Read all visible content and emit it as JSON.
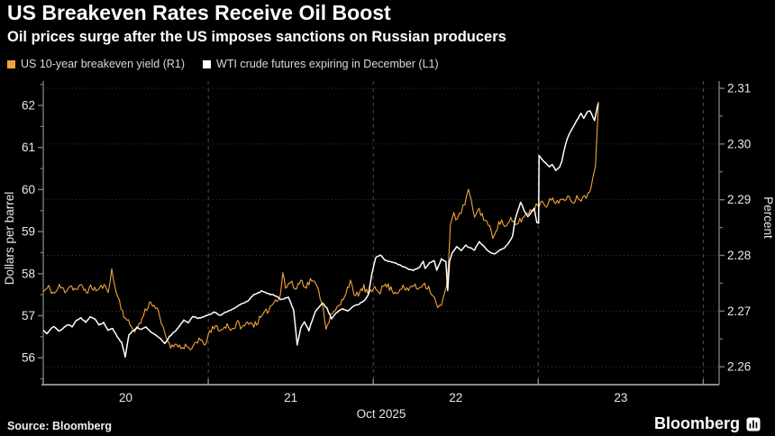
{
  "header": {
    "title": "US Breakeven Rates Receive Oil Boost",
    "subtitle": "Oil prices surge after the US imposes sanctions on Russian producers"
  },
  "legend": {
    "items": [
      {
        "label": "US 10-year breakeven yield (R1)",
        "color": "#F2A33C"
      },
      {
        "label": "WTI crude futures expiring in December (L1)",
        "color": "#FFFFFF"
      }
    ]
  },
  "footer": {
    "source": "Source: Bloomberg",
    "brand": "Bloomberg",
    "brand_icon": "bloomberg-chart-app-icon"
  },
  "colors": {
    "background": "#000000",
    "orange_series": "#F2A33C",
    "white_series": "#FFFFFF",
    "grid_horizontal": "#3a3a3a",
    "grid_vertical": "#4d4d4d",
    "axis_line": "#7a7a7a",
    "bottom_axis_line": "#8a8a8a",
    "tick_label": "#e8e8e8",
    "axis_title": "#d9d9d9"
  },
  "chart_data": {
    "type": "line",
    "title": "US Breakeven Rates Receive Oil Boost",
    "subtitle": "Oil prices surge after the US imposes sanctions on Russian producers",
    "x_axis": {
      "label": "Oct 2025",
      "note_time_unit": "days since Oct 20 2025 00:00",
      "range_days": [
        0,
        4.096
      ],
      "day_label_positions": [
        0.5,
        1.5,
        2.5,
        3.5
      ],
      "day_labels": [
        "20",
        "21",
        "22",
        "23"
      ],
      "boundary_ticks_days": [
        0,
        1,
        2,
        3,
        4
      ],
      "vertical_gridlines_days": [
        1,
        2,
        3,
        4
      ]
    },
    "left_axis": {
      "label": "Dollars per barrel",
      "range": [
        55.36,
        62.58
      ],
      "tick_values": [
        56,
        57,
        58,
        59,
        60,
        61,
        62
      ],
      "tick_labels": [
        "56",
        "57",
        "58",
        "59",
        "60",
        "61",
        "62"
      ],
      "minor_step": 0.5
    },
    "right_axis": {
      "label": "Percent",
      "range": [
        2.2568,
        2.3113
      ],
      "tick_values": [
        2.26,
        2.27,
        2.28,
        2.29,
        2.3,
        2.31
      ],
      "tick_labels": [
        "2.26",
        "2.27",
        "2.28",
        "2.29",
        "2.30",
        "2.31"
      ],
      "minor_step": 0.005,
      "gridlines_on_ticks": true
    },
    "series": [
      {
        "name": "US 10-year breakeven yield (R1)",
        "axis": "right",
        "color": "#F2A33C",
        "width": 1.1,
        "jitter": 0.0006,
        "points": [
          [
            0.0,
            2.2735
          ],
          [
            0.033,
            2.2742
          ],
          [
            0.066,
            2.2731
          ],
          [
            0.098,
            2.2744
          ],
          [
            0.131,
            2.2737
          ],
          [
            0.164,
            2.2746
          ],
          [
            0.197,
            2.2738
          ],
          [
            0.229,
            2.2744
          ],
          [
            0.262,
            2.2736
          ],
          [
            0.295,
            2.2743
          ],
          [
            0.328,
            2.2737
          ],
          [
            0.36,
            2.2745
          ],
          [
            0.393,
            2.2739
          ],
          [
            0.415,
            2.2772
          ],
          [
            0.431,
            2.2748
          ],
          [
            0.453,
            2.2725
          ],
          [
            0.48,
            2.27
          ],
          [
            0.508,
            2.2682
          ],
          [
            0.535,
            2.2672
          ],
          [
            0.562,
            2.2665
          ],
          [
            0.59,
            2.268
          ],
          [
            0.617,
            2.27
          ],
          [
            0.644,
            2.2715
          ],
          [
            0.671,
            2.2712
          ],
          [
            0.699,
            2.2695
          ],
          [
            0.726,
            2.2668
          ],
          [
            0.753,
            2.2648
          ],
          [
            0.781,
            2.2635
          ],
          [
            0.808,
            2.2645
          ],
          [
            0.835,
            2.2632
          ],
          [
            0.862,
            2.264
          ],
          [
            0.89,
            2.2625
          ],
          [
            0.917,
            2.2642
          ],
          [
            0.944,
            2.265
          ],
          [
            0.972,
            2.2638
          ],
          [
            0.999,
            2.2655
          ],
          [
            1.026,
            2.2668
          ],
          [
            1.053,
            2.2672
          ],
          [
            1.081,
            2.2665
          ],
          [
            1.114,
            2.2675
          ],
          [
            1.146,
            2.2668
          ],
          [
            1.179,
            2.2678
          ],
          [
            1.212,
            2.267
          ],
          [
            1.245,
            2.2682
          ],
          [
            1.277,
            2.2675
          ],
          [
            1.31,
            2.2685
          ],
          [
            1.343,
            2.2695
          ],
          [
            1.376,
            2.2708
          ],
          [
            1.408,
            2.272
          ],
          [
            1.436,
            2.2728
          ],
          [
            1.452,
            2.277
          ],
          [
            1.468,
            2.2742
          ],
          [
            1.496,
            2.2752
          ],
          [
            1.528,
            2.274
          ],
          [
            1.561,
            2.2755
          ],
          [
            1.594,
            2.2745
          ],
          [
            1.627,
            2.2758
          ],
          [
            1.659,
            2.2742
          ],
          [
            1.687,
            2.272
          ],
          [
            1.714,
            2.2672
          ],
          [
            1.741,
            2.269
          ],
          [
            1.769,
            2.27
          ],
          [
            1.801,
            2.2712
          ],
          [
            1.834,
            2.2735
          ],
          [
            1.861,
            2.2755
          ],
          [
            1.883,
            2.2725
          ],
          [
            1.91,
            2.2732
          ],
          [
            1.943,
            2.2742
          ],
          [
            1.976,
            2.2728
          ],
          [
            2.009,
            2.2745
          ],
          [
            2.042,
            2.2736
          ],
          [
            2.074,
            2.2748
          ],
          [
            2.107,
            2.274
          ],
          [
            2.14,
            2.2733
          ],
          [
            2.172,
            2.2744
          ],
          [
            2.205,
            2.2736
          ],
          [
            2.238,
            2.2747
          ],
          [
            2.271,
            2.274
          ],
          [
            2.303,
            2.2751
          ],
          [
            2.336,
            2.2742
          ],
          [
            2.363,
            2.2728
          ],
          [
            2.391,
            2.2705
          ],
          [
            2.413,
            2.2712
          ],
          [
            2.434,
            2.273
          ],
          [
            2.451,
            2.276
          ],
          [
            2.467,
            2.2858
          ],
          [
            2.489,
            2.2875
          ],
          [
            2.511,
            2.2862
          ],
          [
            2.533,
            2.288
          ],
          [
            2.555,
            2.2892
          ],
          [
            2.576,
            2.2918
          ],
          [
            2.593,
            2.2895
          ],
          [
            2.614,
            2.2872
          ],
          [
            2.642,
            2.2882
          ],
          [
            2.669,
            2.2868
          ],
          [
            2.696,
            2.2855
          ],
          [
            2.724,
            2.2835
          ],
          [
            2.751,
            2.2852
          ],
          [
            2.778,
            2.2862
          ],
          [
            2.806,
            2.285
          ],
          [
            2.833,
            2.2863
          ],
          [
            2.86,
            2.2855
          ],
          [
            2.888,
            2.2862
          ],
          [
            2.915,
            2.287
          ],
          [
            2.942,
            2.2878
          ],
          [
            2.969,
            2.2885
          ],
          [
            2.997,
            2.289
          ],
          [
            3.024,
            2.2898
          ],
          [
            3.051,
            2.2892
          ],
          [
            3.079,
            2.29
          ],
          [
            3.106,
            2.2895
          ],
          [
            3.133,
            2.2902
          ],
          [
            3.16,
            2.2896
          ],
          [
            3.188,
            2.2904
          ],
          [
            3.215,
            2.2898
          ],
          [
            3.242,
            2.2906
          ],
          [
            3.27,
            2.2901
          ],
          [
            3.291,
            2.2908
          ],
          [
            3.313,
            2.292
          ],
          [
            3.33,
            2.2935
          ],
          [
            3.346,
            2.2965
          ],
          [
            3.357,
            2.303
          ],
          [
            3.365,
            2.3076
          ]
        ]
      },
      {
        "name": "WTI crude futures expiring in December (L1)",
        "axis": "left",
        "color": "#FFFFFF",
        "width": 1.5,
        "jitter": 0.012,
        "points": [
          [
            0.0,
            56.65
          ],
          [
            0.022,
            56.58
          ],
          [
            0.044,
            56.68
          ],
          [
            0.066,
            56.75
          ],
          [
            0.093,
            56.63
          ],
          [
            0.12,
            56.7
          ],
          [
            0.147,
            56.79
          ],
          [
            0.175,
            56.74
          ],
          [
            0.202,
            56.9
          ],
          [
            0.229,
            56.94
          ],
          [
            0.257,
            56.85
          ],
          [
            0.284,
            56.97
          ],
          [
            0.311,
            56.93
          ],
          [
            0.338,
            56.78
          ],
          [
            0.366,
            56.84
          ],
          [
            0.393,
            56.65
          ],
          [
            0.42,
            56.7
          ],
          [
            0.448,
            56.5
          ],
          [
            0.475,
            56.36
          ],
          [
            0.497,
            56.03
          ],
          [
            0.519,
            56.55
          ],
          [
            0.54,
            56.63
          ],
          [
            0.568,
            56.72
          ],
          [
            0.595,
            56.68
          ],
          [
            0.622,
            56.73
          ],
          [
            0.65,
            56.62
          ],
          [
            0.677,
            56.56
          ],
          [
            0.71,
            56.45
          ],
          [
            0.737,
            56.33
          ],
          [
            0.764,
            56.5
          ],
          [
            0.792,
            56.6
          ],
          [
            0.819,
            56.73
          ],
          [
            0.852,
            56.89
          ],
          [
            0.879,
            56.83
          ],
          [
            0.906,
            56.99
          ],
          [
            0.939,
            56.93
          ],
          [
            0.972,
            56.98
          ],
          [
            1.004,
            57.02
          ],
          [
            1.037,
            57.08
          ],
          [
            1.075,
            57.0
          ],
          [
            1.114,
            57.1
          ],
          [
            1.157,
            57.18
          ],
          [
            1.201,
            57.28
          ],
          [
            1.239,
            57.35
          ],
          [
            1.277,
            57.5
          ],
          [
            1.321,
            57.58
          ],
          [
            1.365,
            57.52
          ],
          [
            1.403,
            57.48
          ],
          [
            1.441,
            57.38
          ],
          [
            1.485,
            57.44
          ],
          [
            1.517,
            57.15
          ],
          [
            1.539,
            56.3
          ],
          [
            1.561,
            56.72
          ],
          [
            1.583,
            56.85
          ],
          [
            1.61,
            56.65
          ],
          [
            1.648,
            57.1
          ],
          [
            1.692,
            57.3
          ],
          [
            1.719,
            57.18
          ],
          [
            1.747,
            56.92
          ],
          [
            1.774,
            57.06
          ],
          [
            1.807,
            57.16
          ],
          [
            1.845,
            57.12
          ],
          [
            1.878,
            57.22
          ],
          [
            1.916,
            57.28
          ],
          [
            1.949,
            57.38
          ],
          [
            1.97,
            57.5
          ],
          [
            1.992,
            58.0
          ],
          [
            2.014,
            58.38
          ],
          [
            2.042,
            58.45
          ],
          [
            2.069,
            58.32
          ],
          [
            2.101,
            58.28
          ],
          [
            2.14,
            58.25
          ],
          [
            2.172,
            58.18
          ],
          [
            2.205,
            58.12
          ],
          [
            2.243,
            58.08
          ],
          [
            2.281,
            58.15
          ],
          [
            2.303,
            58.3
          ],
          [
            2.314,
            58.12
          ],
          [
            2.341,
            58.25
          ],
          [
            2.369,
            58.32
          ],
          [
            2.385,
            58.08
          ],
          [
            2.413,
            58.35
          ],
          [
            2.44,
            58.28
          ],
          [
            2.451,
            57.6
          ],
          [
            2.462,
            58.3
          ],
          [
            2.478,
            58.48
          ],
          [
            2.505,
            58.65
          ],
          [
            2.533,
            58.54
          ],
          [
            2.56,
            58.68
          ],
          [
            2.587,
            58.61
          ],
          [
            2.614,
            58.57
          ],
          [
            2.642,
            58.76
          ],
          [
            2.669,
            58.65
          ],
          [
            2.702,
            58.52
          ],
          [
            2.735,
            58.47
          ],
          [
            2.767,
            58.56
          ],
          [
            2.795,
            58.62
          ],
          [
            2.822,
            58.74
          ],
          [
            2.844,
            58.9
          ],
          [
            2.86,
            59.3
          ],
          [
            2.893,
            59.7
          ],
          [
            2.915,
            59.5
          ],
          [
            2.937,
            59.36
          ],
          [
            2.958,
            59.46
          ],
          [
            2.975,
            59.55
          ],
          [
            2.991,
            59.22
          ],
          [
            3.002,
            59.2
          ],
          [
            3.005,
            60.8
          ],
          [
            3.024,
            60.7
          ],
          [
            3.046,
            60.62
          ],
          [
            3.068,
            60.55
          ],
          [
            3.084,
            60.6
          ],
          [
            3.106,
            60.46
          ],
          [
            3.128,
            60.52
          ],
          [
            3.144,
            60.7
          ],
          [
            3.16,
            61.0
          ],
          [
            3.177,
            61.22
          ],
          [
            3.199,
            61.4
          ],
          [
            3.221,
            61.55
          ],
          [
            3.242,
            61.7
          ],
          [
            3.259,
            61.82
          ],
          [
            3.275,
            61.7
          ],
          [
            3.297,
            61.84
          ],
          [
            3.313,
            61.88
          ],
          [
            3.33,
            61.74
          ],
          [
            3.341,
            61.64
          ],
          [
            3.352,
            61.85
          ],
          [
            3.363,
            62.05
          ]
        ]
      }
    ]
  }
}
